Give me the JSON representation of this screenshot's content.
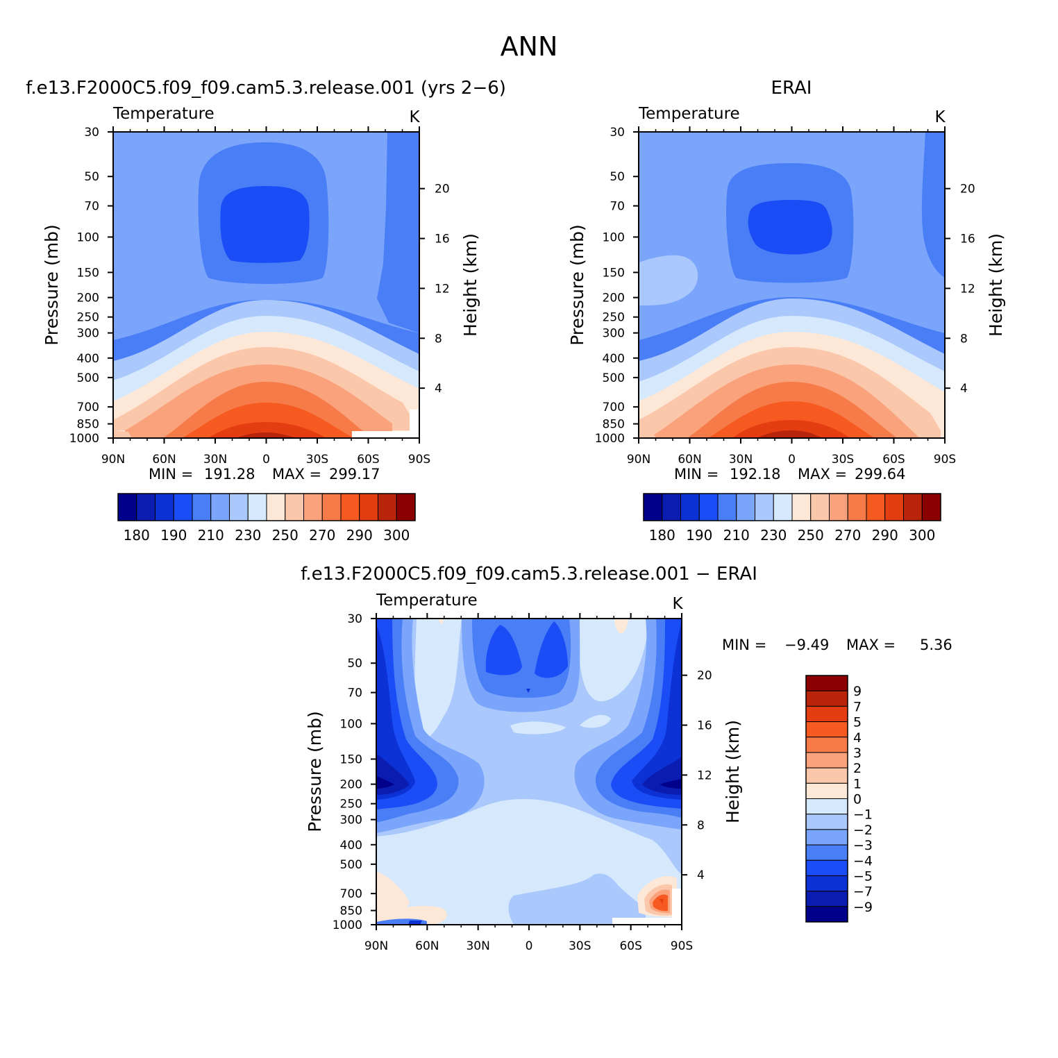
{
  "figure_title": "ANN",
  "colors": {
    "abs": [
      "#00008b",
      "#0a1db0",
      "#0c32d6",
      "#1a4df5",
      "#4a7ef7",
      "#7aa5fa",
      "#aac8fb",
      "#d5e8fc",
      "#fde8d8",
      "#fbc7ab",
      "#f9a27c",
      "#f77b48",
      "#f65a20",
      "#e53d12",
      "#b8250b",
      "#8b0000"
    ],
    "diff": [
      "#00008b",
      "#0a1db0",
      "#0c32d6",
      "#1a4df5",
      "#4a7ef7",
      "#7aa5fa",
      "#aac8fb",
      "#d5e8fc",
      "#fde8d8",
      "#fbc7ab",
      "#f9a27c",
      "#f77b48",
      "#f65a20",
      "#e53d12",
      "#b8250b",
      "#8b0000"
    ]
  },
  "chart_data": [
    {
      "type": "contour",
      "title": "f.e13.F2000C5.f09_f09.cam5.3.release.001 (yrs 2−6)",
      "variable": "Temperature",
      "units": "K",
      "ylabel": "Pressure (mb)",
      "y2label": "Height (km)",
      "x_ticks": [
        "90N",
        "60N",
        "30N",
        "0",
        "30S",
        "60S",
        "90S"
      ],
      "x_values": [
        90,
        60,
        30,
        0,
        -30,
        -60,
        -90
      ],
      "y_ticks": [
        "30",
        "50",
        "70",
        "100",
        "150",
        "200",
        "250",
        "300",
        "400",
        "500",
        "700",
        "850",
        "1000"
      ],
      "y_values": [
        30,
        50,
        70,
        100,
        150,
        200,
        250,
        300,
        400,
        500,
        700,
        850,
        1000
      ],
      "y2_ticks": [
        "20",
        "16",
        "12",
        "8",
        "4"
      ],
      "y2_values": [
        20,
        16,
        12,
        8,
        4
      ],
      "min_label": "MIN =",
      "min": "191.28",
      "max_label": "MAX =",
      "max": "299.17",
      "colorbar_labels": [
        "180",
        "190",
        "210",
        "230",
        "250",
        "270",
        "290",
        "300"
      ]
    },
    {
      "type": "contour",
      "title": "ERAI",
      "variable": "Temperature",
      "units": "K",
      "ylabel": "Pressure (mb)",
      "y2label": "Height (km)",
      "x_ticks": [
        "90N",
        "60N",
        "30N",
        "0",
        "30S",
        "60S",
        "90S"
      ],
      "x_values": [
        90,
        60,
        30,
        0,
        -30,
        -60,
        -90
      ],
      "y_ticks": [
        "30",
        "50",
        "70",
        "100",
        "150",
        "200",
        "250",
        "300",
        "400",
        "500",
        "700",
        "850",
        "1000"
      ],
      "y_values": [
        30,
        50,
        70,
        100,
        150,
        200,
        250,
        300,
        400,
        500,
        700,
        850,
        1000
      ],
      "y2_ticks": [
        "20",
        "16",
        "12",
        "8",
        "4"
      ],
      "y2_values": [
        20,
        16,
        12,
        8,
        4
      ],
      "min_label": "MIN =",
      "min": "192.18",
      "max_label": "MAX =",
      "max": "299.64",
      "colorbar_labels": [
        "180",
        "190",
        "210",
        "230",
        "250",
        "270",
        "290",
        "300"
      ]
    },
    {
      "type": "contour",
      "title": "f.e13.F2000C5.f09_f09.cam5.3.release.001 − ERAI",
      "variable": "Temperature",
      "units": "K",
      "ylabel": "Pressure (mb)",
      "y2label": "Height (km)",
      "x_ticks": [
        "90N",
        "60N",
        "30N",
        "0",
        "30S",
        "60S",
        "90S"
      ],
      "x_values": [
        90,
        60,
        30,
        0,
        -30,
        -60,
        -90
      ],
      "y_ticks": [
        "30",
        "50",
        "70",
        "100",
        "150",
        "200",
        "250",
        "300",
        "400",
        "500",
        "700",
        "850",
        "1000"
      ],
      "y_values": [
        30,
        50,
        70,
        100,
        150,
        200,
        250,
        300,
        400,
        500,
        700,
        850,
        1000
      ],
      "y2_ticks": [
        "20",
        "16",
        "12",
        "8",
        "4"
      ],
      "y2_values": [
        20,
        16,
        12,
        8,
        4
      ],
      "min_label": "MIN =",
      "min": "−9.49",
      "max_label": "MAX =",
      "max": "5.36",
      "colorbar_labels": [
        "9",
        "7",
        "5",
        "4",
        "3",
        "2",
        "1",
        "0",
        "−1",
        "−2",
        "−3",
        "−4",
        "−5",
        "−7",
        "−9"
      ]
    }
  ]
}
